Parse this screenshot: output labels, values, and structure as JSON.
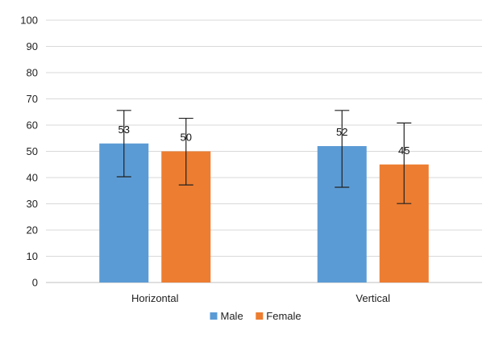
{
  "chart_data": {
    "type": "bar",
    "title": "",
    "xlabel": "",
    "ylabel": "",
    "categories": [
      "Horizontal",
      "Vertical"
    ],
    "ylim": [
      0,
      100
    ],
    "yticks": [
      0,
      10,
      20,
      30,
      40,
      50,
      60,
      70,
      80,
      90,
      100
    ],
    "grid": true,
    "legend_position": "bottom",
    "series": [
      {
        "name": "Male",
        "color": "#5B9BD5",
        "values": [
          53,
          52
        ],
        "error_low": [
          40.3,
          36.3
        ],
        "error_high": [
          65.6,
          65.6
        ]
      },
      {
        "name": "Female",
        "color": "#ED7D31",
        "values": [
          50,
          45
        ],
        "error_low": [
          37.2,
          30.1
        ],
        "error_high": [
          62.6,
          60.8
        ]
      }
    ]
  }
}
